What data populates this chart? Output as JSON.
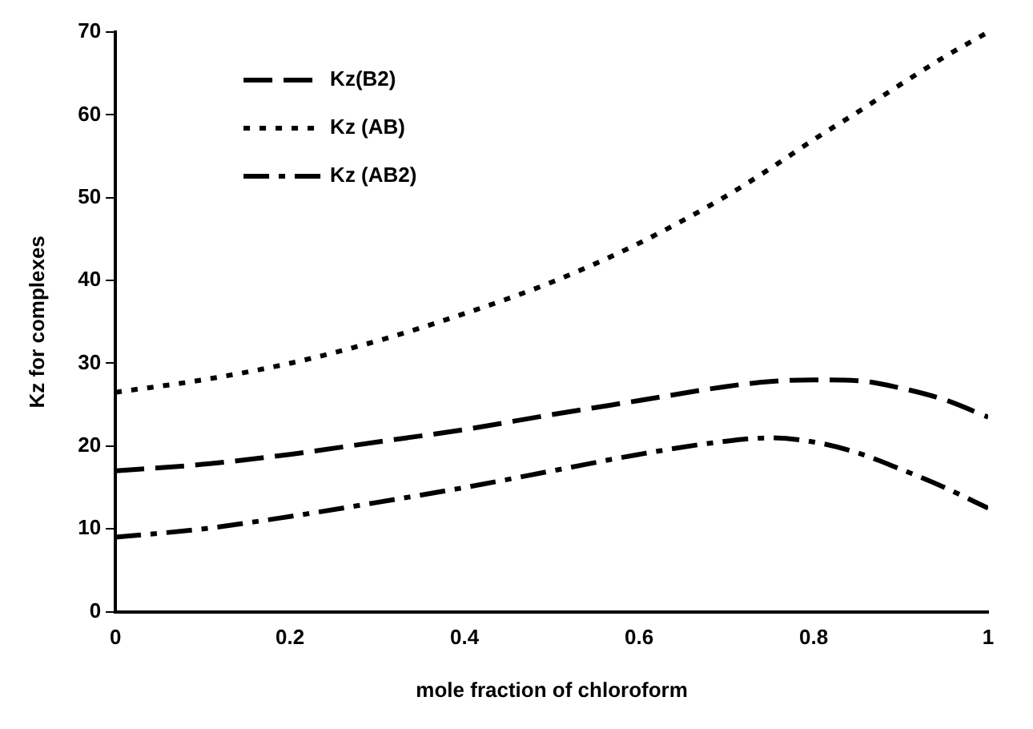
{
  "chart_data": {
    "type": "line",
    "xlabel": "mole fraction of chloroform",
    "ylabel": "Kz for complexes",
    "xlim": [
      0,
      1
    ],
    "xticks": [
      0,
      0.2,
      0.4,
      0.6,
      0.8,
      1
    ],
    "ylim": [
      0,
      70
    ],
    "yticks": [
      0,
      10,
      20,
      30,
      40,
      50,
      60,
      70
    ],
    "grid": false,
    "legend": "top left",
    "marker": "none",
    "x": [
      0,
      0.1,
      0.2,
      0.3,
      0.4,
      0.5,
      0.6,
      0.7,
      0.75,
      0.8,
      0.85,
      0.9,
      0.95,
      1
    ],
    "series": [
      {
        "name": "Kz(B2)",
        "color": "#000000",
        "line_style": "dashed",
        "values": [
          17,
          17.8,
          19,
          20.5,
          22,
          23.8,
          25.5,
          27.2,
          27.8,
          28,
          27.9,
          27,
          25.6,
          23.5
        ]
      },
      {
        "name": "Kz (AB)",
        "color": "#000000",
        "line_style": "dotted",
        "values": [
          26.5,
          28,
          30,
          32.7,
          36,
          39.8,
          44.5,
          50.2,
          53.5,
          57,
          60.3,
          63.7,
          67,
          70
        ]
      },
      {
        "name": "Kz (AB2)",
        "color": "#000000",
        "line_style": "dashdot",
        "values": [
          9,
          10,
          11.5,
          13.2,
          15,
          17,
          19,
          20.6,
          21,
          20.5,
          19.2,
          17.2,
          15,
          12.5
        ]
      }
    ]
  }
}
